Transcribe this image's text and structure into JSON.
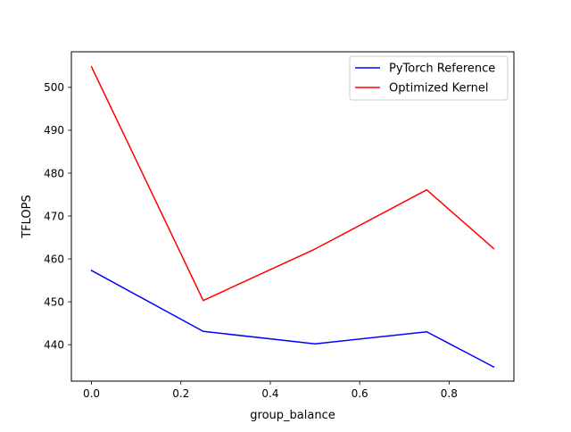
{
  "chart_data": {
    "type": "line",
    "xlabel": "group_balance",
    "ylabel": "TFLOPS",
    "xlim": [
      -0.045,
      0.945
    ],
    "ylim": [
      431.5,
      508.3
    ],
    "xticks": [
      0.0,
      0.2,
      0.4,
      0.6,
      0.8
    ],
    "xtick_labels": [
      "0.0",
      "0.2",
      "0.4",
      "0.6",
      "0.8"
    ],
    "yticks": [
      440,
      450,
      460,
      470,
      480,
      490,
      500
    ],
    "ytick_labels": [
      "440",
      "450",
      "460",
      "470",
      "480",
      "490",
      "500"
    ],
    "grid": false,
    "legend_position": "top-right",
    "series": [
      {
        "name": "PyTorch Reference",
        "color": "#0000ff",
        "x": [
          0.0,
          0.25,
          0.5,
          0.75,
          0.9
        ],
        "y": [
          457.3,
          443.1,
          440.2,
          443.0,
          434.8
        ]
      },
      {
        "name": "Optimized Kernel",
        "color": "#ff0000",
        "x": [
          0.0,
          0.25,
          0.5,
          0.75,
          0.9
        ],
        "y": [
          504.8,
          450.3,
          462.3,
          476.1,
          462.4
        ]
      }
    ]
  }
}
